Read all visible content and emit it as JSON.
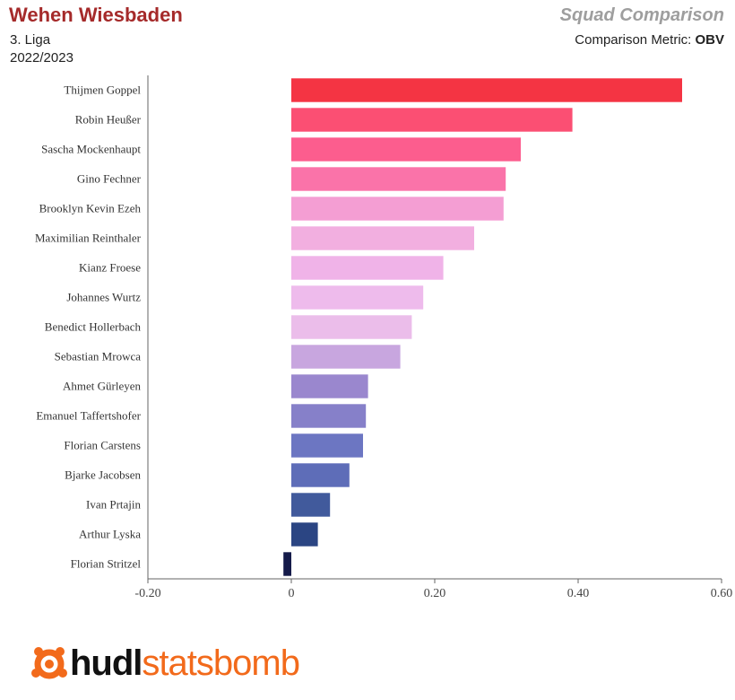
{
  "header": {
    "team": "Wehen Wiesbaden",
    "league": "3. Liga",
    "season": "2022/2023",
    "report_title": "Squad Comparison",
    "metric_label": "Comparison Metric: ",
    "metric_value": "OBV"
  },
  "logo": {
    "hudl": "hudl",
    "statsbomb": "statsbomb",
    "icon": "statsbomb-logo-icon"
  },
  "colors": {
    "title": "#a52a2a",
    "brand_orange": "#f26a1b"
  },
  "chart_data": {
    "type": "bar",
    "orientation": "horizontal",
    "categories": [
      "Thijmen Goppel",
      "Robin Heußer",
      "Sascha Mockenhaupt",
      "Gino Fechner",
      "Brooklyn Kevin Ezeh",
      "Maximilian Reinthaler",
      "Kianz Froese",
      "Johannes Wurtz",
      "Benedict Hollerbach",
      "Sebastian Mrowca",
      "Ahmet Gürleyen",
      "Emanuel Taffertshofer",
      "Florian Carstens",
      "Bjarke Jacobsen",
      "Ivan Prtajin",
      "Arthur Lyska",
      "Florian Stritzel"
    ],
    "values": [
      0.545,
      0.392,
      0.32,
      0.299,
      0.296,
      0.255,
      0.212,
      0.184,
      0.168,
      0.152,
      0.107,
      0.104,
      0.1,
      0.081,
      0.054,
      0.037,
      -0.011
    ],
    "bar_colors": [
      "#f43443",
      "#fb4f73",
      "#fc5d8e",
      "#fa73a9",
      "#f49ed3",
      "#f2afe0",
      "#f0b3e8",
      "#eebbec",
      "#ebbdea",
      "#c8a6df",
      "#9a87ce",
      "#8680c9",
      "#6c76c2",
      "#5e6db8",
      "#415a9c",
      "#2b4583",
      "#151b4a"
    ],
    "xlim": [
      -0.2,
      0.6
    ],
    "xticks": [
      "-0.20",
      "0",
      "0.20",
      "0.40",
      "0.60"
    ],
    "xtick_values": [
      -0.2,
      0,
      0.2,
      0.4,
      0.6
    ],
    "xlabel": "",
    "ylabel": "",
    "grid": false,
    "legend": "none"
  }
}
